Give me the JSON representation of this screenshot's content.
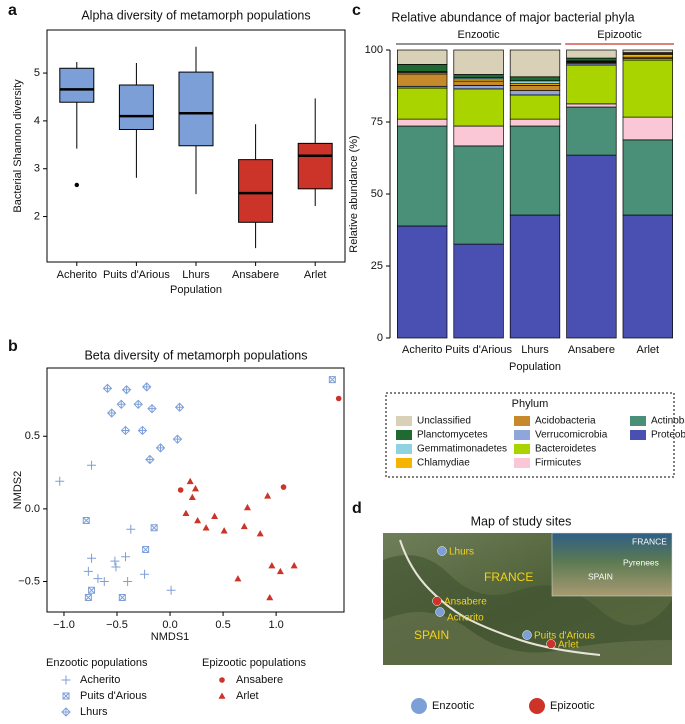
{
  "panels": [
    "a",
    "b",
    "c",
    "d"
  ],
  "chart_data": [
    {
      "type": "box",
      "title": "Alpha diversity of metamorph populations",
      "xlabel": "Population",
      "ylabel": "Bacterial Shannon diversity",
      "categories": [
        "Acherito",
        "Puits d'Arious",
        "Lhurs",
        "Ansabere",
        "Arlet"
      ],
      "colors": [
        "#7d9fd8",
        "#7d9fd8",
        "#7d9fd8",
        "#cc3329",
        "#cc3329"
      ],
      "boxes": [
        {
          "whisker_low": 3.42,
          "q1": 4.39,
          "median": 4.66,
          "q3": 5.1,
          "whisker_high": 5.23,
          "outliers": [
            2.66
          ]
        },
        {
          "whisker_low": 2.81,
          "q1": 3.82,
          "median": 4.1,
          "q3": 4.75,
          "whisker_high": 5.21,
          "outliers": []
        },
        {
          "whisker_low": 2.47,
          "q1": 3.48,
          "median": 4.16,
          "q3": 5.02,
          "whisker_high": 5.55,
          "outliers": []
        },
        {
          "whisker_low": 1.34,
          "q1": 1.88,
          "median": 2.49,
          "q3": 3.19,
          "whisker_high": 3.93,
          "outliers": []
        },
        {
          "whisker_low": 2.22,
          "q1": 2.58,
          "median": 3.27,
          "q3": 3.53,
          "whisker_high": 4.47,
          "outliers": []
        }
      ],
      "ylim": [
        1.05,
        5.9
      ],
      "yticks": [
        2,
        3,
        4,
        5
      ]
    },
    {
      "type": "scatter",
      "title": "Beta diversity of metamorph populations",
      "xlabel": "NMDS1",
      "ylabel": "NMDS2",
      "xlim": [
        -1.16,
        1.64
      ],
      "ylim": [
        -0.71,
        0.97
      ],
      "xticks": [
        {
          "value": -1,
          "label": "−1.0"
        },
        {
          "value": -0.5,
          "label": "−0.5"
        },
        {
          "value": 0,
          "label": "0.0"
        },
        {
          "value": 0.5,
          "label": "0.5"
        },
        {
          "value": 1,
          "label": "1.0"
        }
      ],
      "yticks": [
        {
          "value": -0.5,
          "label": "−0.5"
        },
        {
          "value": 0,
          "label": "0.0"
        },
        {
          "value": 0.5,
          "label": "0.5"
        }
      ],
      "series": [
        {
          "name": "Acherito",
          "color": "#7d9fd8",
          "marker": "plus",
          "x": [
            -1.04,
            -0.74,
            -0.37,
            -0.42,
            -0.74,
            -0.51,
            -0.62,
            -0.77,
            -0.68,
            -0.24,
            -0.4,
            0.01,
            -0.52
          ],
          "y": [
            0.19,
            0.3,
            -0.14,
            -0.33,
            -0.34,
            -0.4,
            -0.5,
            -0.43,
            -0.48,
            -0.45,
            -0.5,
            -0.56,
            -0.36
          ]
        },
        {
          "name": "Puits d'Arious",
          "color": "#7d9fd8",
          "marker": "square-x",
          "x": [
            1.53,
            -0.79,
            -0.15,
            -0.23,
            -0.74,
            -0.77,
            -0.45
          ],
          "y": [
            0.89,
            -0.08,
            -0.13,
            -0.28,
            -0.56,
            -0.61,
            -0.61
          ]
        },
        {
          "name": "Lhurs",
          "color": "#7d9fd8",
          "marker": "diamond-plus",
          "x": [
            -0.59,
            -0.41,
            -0.22,
            -0.55,
            -0.46,
            -0.3,
            -0.17,
            0.09,
            -0.42,
            -0.26,
            -0.19,
            0.07,
            -0.09
          ],
          "y": [
            0.83,
            0.82,
            0.84,
            0.66,
            0.72,
            0.72,
            0.69,
            0.7,
            0.54,
            0.54,
            0.34,
            0.48,
            0.42
          ]
        },
        {
          "name": "Ansabere",
          "color": "#cc3329",
          "marker": "circle",
          "x": [
            1.59,
            1.07,
            0.1
          ],
          "y": [
            0.76,
            0.15,
            0.13
          ]
        },
        {
          "name": "Arlet",
          "color": "#cc3329",
          "marker": "triangle",
          "x": [
            0.19,
            0.24,
            0.21,
            0.15,
            0.26,
            0.34,
            0.42,
            0.51,
            0.7,
            0.73,
            0.92,
            0.85,
            0.96,
            1.04,
            1.17,
            0.64,
            0.94
          ],
          "y": [
            0.19,
            0.14,
            0.08,
            -0.03,
            -0.08,
            -0.13,
            -0.05,
            -0.15,
            -0.12,
            0.01,
            0.09,
            -0.17,
            -0.39,
            -0.43,
            -0.39,
            -0.48,
            -0.61
          ]
        }
      ],
      "legend_groups": [
        {
          "title": "Enzootic populations",
          "series": [
            "Acherito",
            "Puits d'Arious",
            "Lhurs"
          ]
        },
        {
          "title": "Epizootic populations",
          "series": [
            "Ansabere",
            "Arlet"
          ]
        }
      ]
    },
    {
      "type": "stacked_bar",
      "title": "Relative abundance of major bacterial phyla",
      "xlabel": "Population",
      "ylabel": "Relative abundance (%)",
      "legend_title": "Phylum",
      "categories": [
        "Acherito",
        "Puits d'Arious",
        "Lhurs",
        "Ansabere",
        "Arlet"
      ],
      "groups": [
        {
          "name": "Enzootic",
          "color": "#555555",
          "members": [
            "Acherito",
            "Puits d'Arious",
            "Lhurs"
          ]
        },
        {
          "name": "Epizootic",
          "color": "#cc3329",
          "members": [
            "Ansabere",
            "Arlet"
          ]
        }
      ],
      "ylim": [
        0,
        100
      ],
      "yticks": [
        0,
        25,
        50,
        75,
        100
      ],
      "series": [
        {
          "name": "Unclassified",
          "color": "#d9d0b8",
          "values": [
            5.0,
            8.5,
            9.3,
            2.8,
            0.9
          ]
        },
        {
          "name": "Planctomycetes",
          "color": "#1e6a32",
          "values": [
            2.5,
            1.0,
            1.4,
            1.0,
            0.4
          ]
        },
        {
          "name": "Gemmatimonadetes",
          "color": "#8fd3e3",
          "values": [
            0.3,
            0.5,
            1.0,
            0.2,
            0.2
          ]
        },
        {
          "name": "Chlamydiae",
          "color": "#f4b400",
          "values": [
            0.5,
            0.8,
            0.6,
            0.3,
            1.0
          ]
        },
        {
          "name": "Acidobacteria",
          "color": "#c68a2c",
          "values": [
            4.3,
            1.5,
            1.8,
            0.3,
            0.5
          ]
        },
        {
          "name": "Verrucomicrobia",
          "color": "#8fa6da",
          "values": [
            0.6,
            1.2,
            1.5,
            0.6,
            0.5
          ]
        },
        {
          "name": "Bacteroidetes",
          "color": "#a9d400",
          "values": [
            10.8,
            12.9,
            8.4,
            13.5,
            19.8
          ]
        },
        {
          "name": "Firmicutes",
          "color": "#f9c7d5",
          "values": [
            2.4,
            6.9,
            2.4,
            1.1,
            7.9
          ]
        },
        {
          "name": "Actinobacteria",
          "color": "#4a8f78",
          "values": [
            34.7,
            34.1,
            30.9,
            16.7,
            26.1
          ]
        },
        {
          "name": "Proteobacteria",
          "color": "#4a4fb2",
          "values": [
            38.9,
            32.6,
            42.7,
            63.5,
            42.7
          ]
        }
      ]
    }
  ],
  "map": {
    "title": "Map of study sites",
    "sites": [
      {
        "name": "Lhurs",
        "color": "#7d9fd8"
      },
      {
        "name": "Ansabere",
        "color": "#cc3329"
      },
      {
        "name": "Acherito",
        "color": "#7d9fd8"
      },
      {
        "name": "Puits d'Arious",
        "color": "#7d9fd8"
      },
      {
        "name": "Arlet",
        "color": "#cc3329"
      }
    ],
    "regions": [
      "FRANCE",
      "SPAIN"
    ],
    "inset_labels": [
      "FRANCE",
      "Pyrenees",
      "SPAIN"
    ],
    "legend": [
      {
        "label": "Enzootic",
        "color": "#7d9fd8"
      },
      {
        "label": "Epizootic",
        "color": "#cc3329"
      }
    ]
  }
}
